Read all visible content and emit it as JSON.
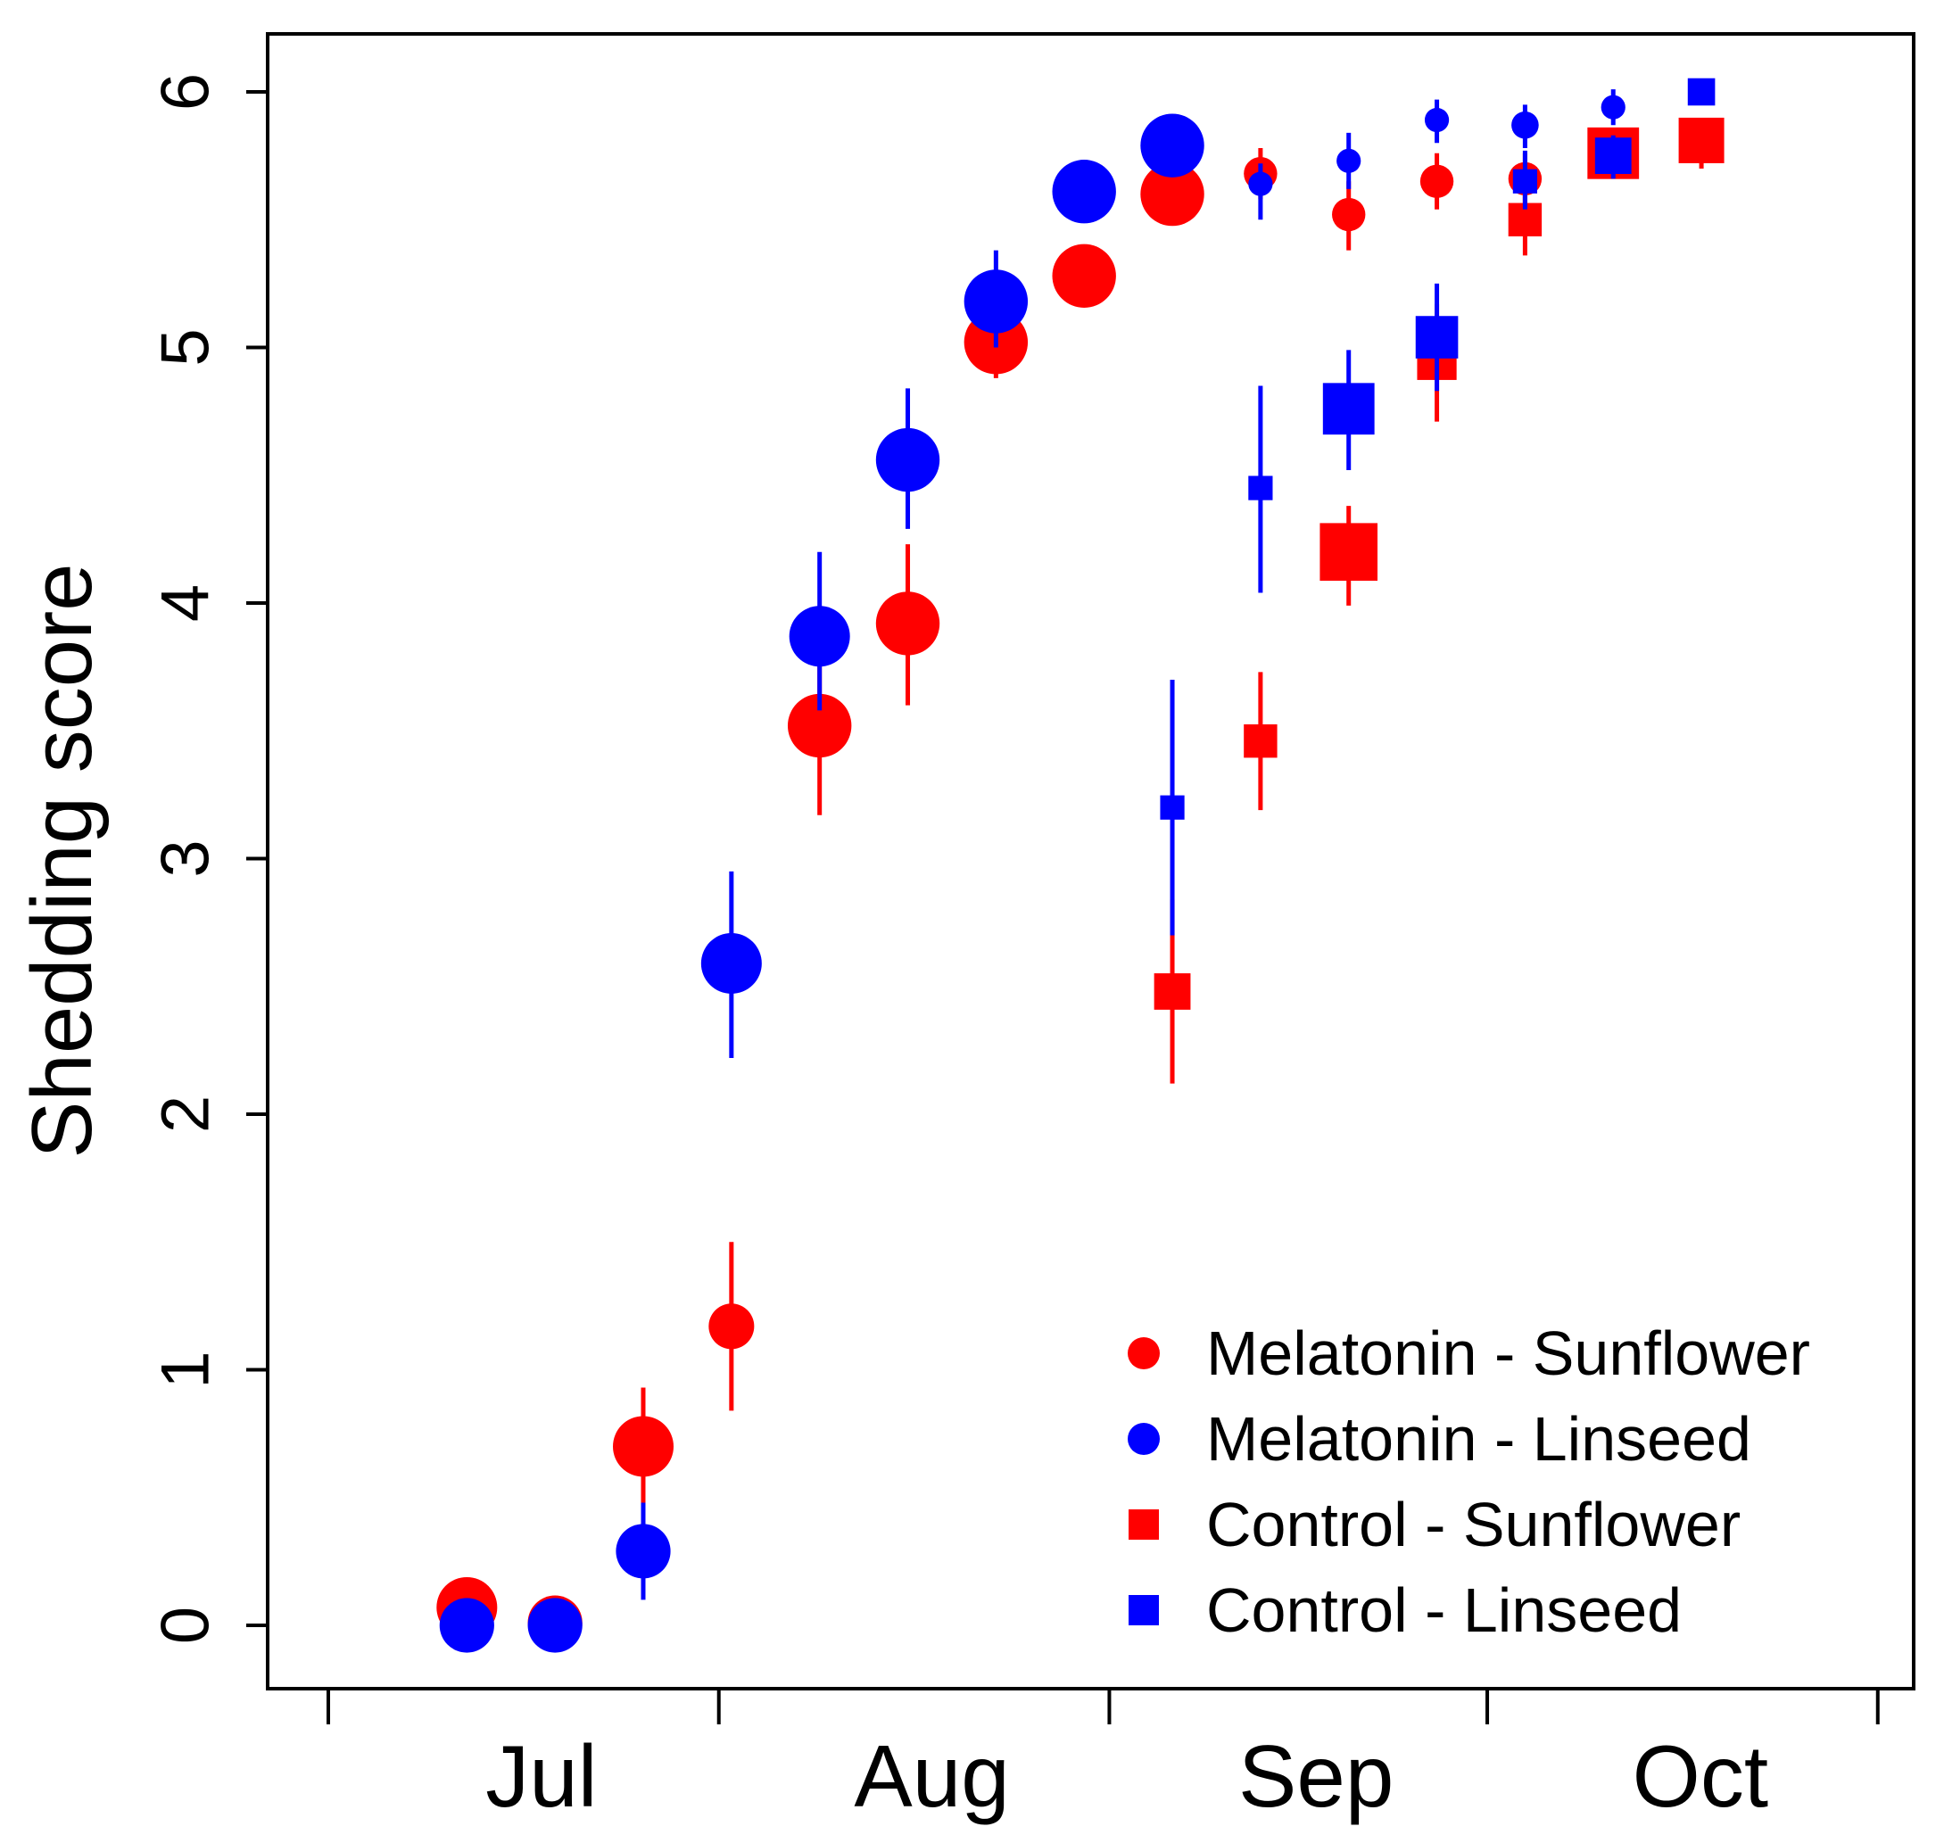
{
  "chart_data": {
    "type": "scatter",
    "ylabel": "Shedding score",
    "xlabel": "",
    "title": "",
    "ylim": [
      0,
      6
    ],
    "x_unit": "day",
    "x_ticks": [
      "Jul",
      "Aug",
      "Sep",
      "Oct"
    ],
    "y_ticks": [
      "0",
      "1",
      "2",
      "3",
      "4",
      "5",
      "6"
    ],
    "legend_position": "bottom-right",
    "series": [
      {
        "name": "Melatonin - Sunflower",
        "color": "#ff0000",
        "marker": "circle",
        "points": [
          {
            "x": "2020-07-12",
            "y": 0.07,
            "lo": 0.07,
            "hi": 0.07,
            "size": 1.0
          },
          {
            "x": "2020-07-19",
            "y": 0.01,
            "lo": 0.01,
            "hi": 0.01,
            "size": 0.9
          },
          {
            "x": "2020-07-26",
            "y": 0.7,
            "lo": 0.45,
            "hi": 0.93,
            "size": 1.0
          },
          {
            "x": "2020-08-02",
            "y": 1.17,
            "lo": 0.84,
            "hi": 1.5,
            "size": 0.75
          },
          {
            "x": "2020-08-09",
            "y": 3.52,
            "lo": 3.17,
            "hi": 3.86,
            "size": 1.05
          },
          {
            "x": "2020-08-16",
            "y": 3.92,
            "lo": 3.6,
            "hi": 4.23,
            "size": 1.05
          },
          {
            "x": "2020-08-23",
            "y": 5.02,
            "lo": 4.88,
            "hi": 5.1,
            "size": 1.05
          },
          {
            "x": "2020-08-30",
            "y": 5.28,
            "lo": 5.23,
            "hi": 5.33,
            "size": 1.05
          },
          {
            "x": "2020-09-06",
            "y": 5.6,
            "lo": 5.55,
            "hi": 5.65,
            "size": 1.05
          },
          {
            "x": "2020-09-13",
            "y": 5.68,
            "lo": 5.58,
            "hi": 5.78,
            "size": 0.55
          },
          {
            "x": "2020-09-20",
            "y": 5.52,
            "lo": 5.38,
            "hi": 5.65,
            "size": 0.55
          },
          {
            "x": "2020-09-27",
            "y": 5.65,
            "lo": 5.54,
            "hi": 5.76,
            "size": 0.55
          },
          {
            "x": "2020-10-04",
            "y": 5.66,
            "lo": 5.55,
            "hi": 5.76,
            "size": 0.55
          },
          {
            "x": "2020-10-11",
            "y": 5.75,
            "lo": 5.66,
            "hi": 5.83,
            "size": 0.55
          },
          {
            "x": "2020-10-18",
            "y": 5.79,
            "lo": 5.7,
            "hi": 5.86,
            "size": 0.55
          }
        ]
      },
      {
        "name": "Melatonin - Linseed",
        "color": "#0000ff",
        "marker": "circle",
        "points": [
          {
            "x": "2020-07-12",
            "y": 0.0,
            "lo": 0.0,
            "hi": 0.0,
            "size": 0.9
          },
          {
            "x": "2020-07-19",
            "y": 0.0,
            "lo": 0.0,
            "hi": 0.0,
            "size": 0.9
          },
          {
            "x": "2020-07-26",
            "y": 0.29,
            "lo": 0.1,
            "hi": 0.48,
            "size": 0.9
          },
          {
            "x": "2020-08-02",
            "y": 2.59,
            "lo": 2.22,
            "hi": 2.95,
            "size": 1.0
          },
          {
            "x": "2020-08-09",
            "y": 3.87,
            "lo": 3.58,
            "hi": 4.2,
            "size": 1.0
          },
          {
            "x": "2020-08-16",
            "y": 4.56,
            "lo": 4.29,
            "hi": 4.84,
            "size": 1.05
          },
          {
            "x": "2020-08-23",
            "y": 5.18,
            "lo": 5.0,
            "hi": 5.38,
            "size": 1.05
          },
          {
            "x": "2020-08-30",
            "y": 5.61,
            "lo": 5.56,
            "hi": 5.66,
            "size": 1.05
          },
          {
            "x": "2020-09-06",
            "y": 5.79,
            "lo": 5.74,
            "hi": 5.84,
            "size": 1.05
          },
          {
            "x": "2020-09-13",
            "y": 5.64,
            "lo": 5.5,
            "hi": 5.72,
            "size": 0.4
          },
          {
            "x": "2020-09-20",
            "y": 5.73,
            "lo": 5.62,
            "hi": 5.84,
            "size": 0.4
          },
          {
            "x": "2020-09-27",
            "y": 5.89,
            "lo": 5.8,
            "hi": 5.97,
            "size": 0.4
          },
          {
            "x": "2020-10-04",
            "y": 5.87,
            "lo": 5.78,
            "hi": 5.95,
            "size": 0.45
          },
          {
            "x": "2020-10-11",
            "y": 5.94,
            "lo": 5.87,
            "hi": 6.01,
            "size": 0.4
          },
          {
            "x": "2020-10-18",
            "y": 6.0,
            "lo": 6.0,
            "hi": 6.0,
            "size": 0.4
          }
        ]
      },
      {
        "name": "Control - Sunflower",
        "color": "#ff0000",
        "marker": "square",
        "points": [
          {
            "x": "2020-09-06",
            "y": 2.48,
            "lo": 2.12,
            "hi": 2.84,
            "size": 0.6
          },
          {
            "x": "2020-09-13",
            "y": 3.46,
            "lo": 3.19,
            "hi": 3.73,
            "size": 0.55
          },
          {
            "x": "2020-09-20",
            "y": 4.2,
            "lo": 3.99,
            "hi": 4.38,
            "size": 0.95
          },
          {
            "x": "2020-09-27",
            "y": 4.95,
            "lo": 4.71,
            "hi": 5.17,
            "size": 0.65
          },
          {
            "x": "2020-10-04",
            "y": 5.5,
            "lo": 5.36,
            "hi": 5.62,
            "size": 0.55
          },
          {
            "x": "2020-10-11",
            "y": 5.76,
            "lo": 5.66,
            "hi": 5.84,
            "size": 0.85
          },
          {
            "x": "2020-10-18",
            "y": 5.81,
            "lo": 5.72,
            "hi": 5.88,
            "size": 0.75
          }
        ]
      },
      {
        "name": "Control - Linseed",
        "color": "#0000ff",
        "marker": "square",
        "points": [
          {
            "x": "2020-09-06",
            "y": 3.2,
            "lo": 2.7,
            "hi": 3.7,
            "size": 0.4
          },
          {
            "x": "2020-09-13",
            "y": 4.45,
            "lo": 4.04,
            "hi": 4.85,
            "size": 0.4
          },
          {
            "x": "2020-09-20",
            "y": 4.76,
            "lo": 4.52,
            "hi": 4.99,
            "size": 0.85
          },
          {
            "x": "2020-09-27",
            "y": 5.04,
            "lo": 4.83,
            "hi": 5.25,
            "size": 0.7
          },
          {
            "x": "2020-10-04",
            "y": 5.65,
            "lo": 5.54,
            "hi": 5.77,
            "size": 0.4
          },
          {
            "x": "2020-10-11",
            "y": 5.75,
            "lo": 5.66,
            "hi": 5.83,
            "size": 0.6
          },
          {
            "x": "2020-10-18",
            "y": 6.0,
            "lo": 6.0,
            "hi": 6.0,
            "size": 0.45
          }
        ]
      }
    ]
  }
}
